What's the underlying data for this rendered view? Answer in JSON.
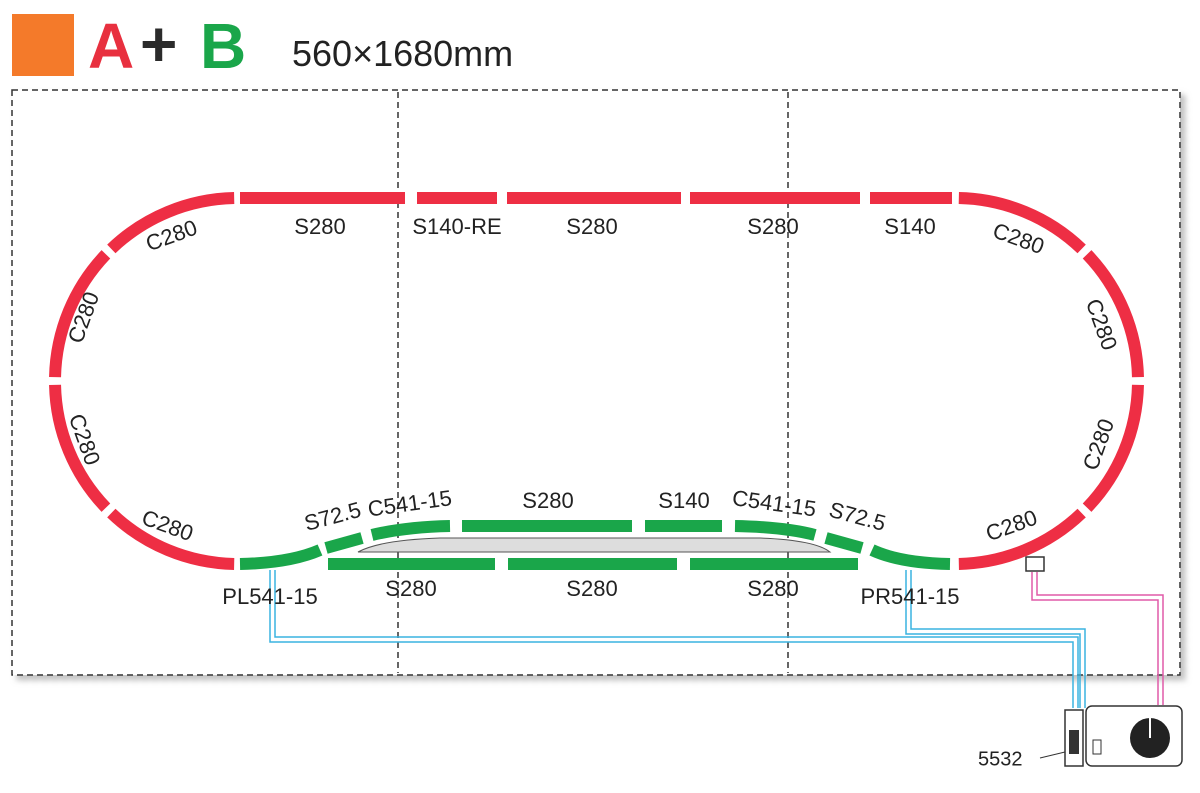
{
  "header": {
    "letter_a": "A",
    "plus": "+",
    "letter_b": "B",
    "size": "560×1680mm"
  },
  "red_labels": [
    "C280",
    "S280",
    "S140-RE",
    "S280",
    "S280",
    "S140",
    "C280",
    "C280",
    "C280",
    "C280",
    "C280",
    "C280",
    "C280"
  ],
  "green_labels": [
    "S72.5",
    "C541-15",
    "S280",
    "S140",
    "C541-15",
    "S72.5",
    "PL541-15",
    "S280",
    "S280",
    "S280",
    "PR541-15"
  ],
  "controller_label": "5532"
}
